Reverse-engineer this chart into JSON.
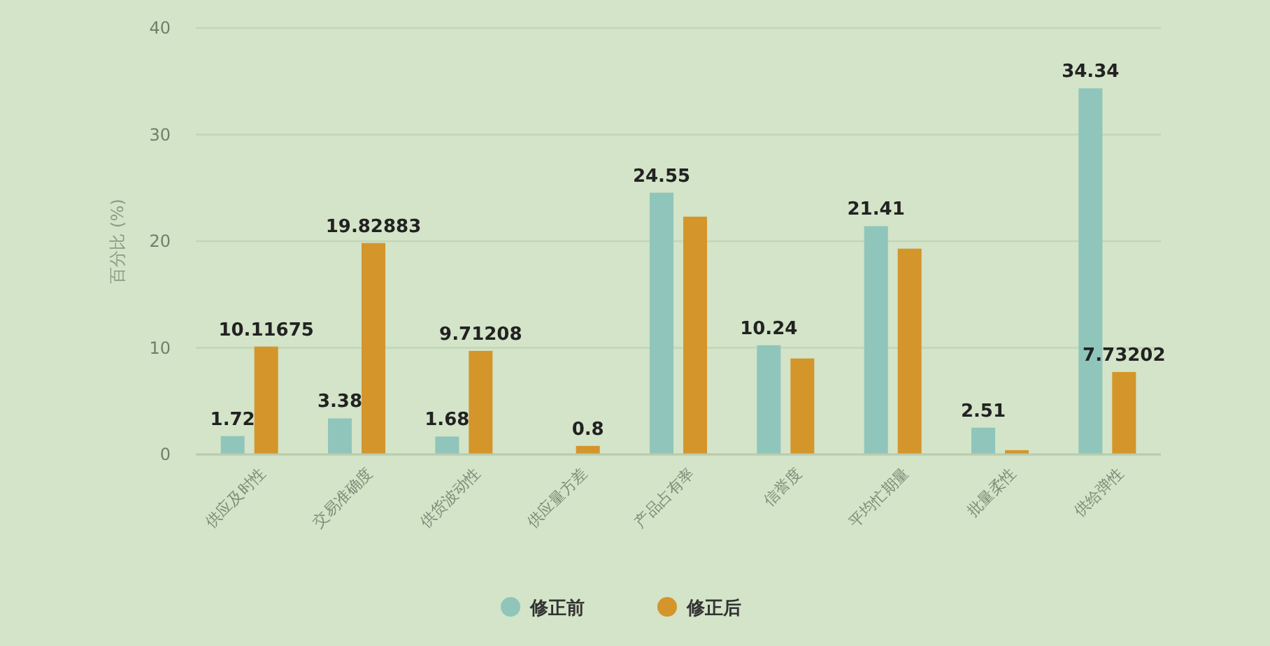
{
  "chart_data": {
    "type": "bar",
    "ylabel": "百分比 (%)",
    "categories": [
      "供应及时性",
      "交易准确度",
      "供货波动性",
      "供应量方差",
      "产品占有率",
      "信誉度",
      "平均忙期量",
      "批量柔性",
      "供给弹性"
    ],
    "series": [
      {
        "name": "修正前",
        "color": "#8fc5bb",
        "values": [
          1.72,
          3.38,
          1.68,
          null,
          24.55,
          10.24,
          21.41,
          2.51,
          34.34
        ],
        "value_labels": [
          "1.72",
          "3.38",
          "1.68",
          null,
          "24.55",
          "10.24",
          "21.41",
          "2.51",
          "34.34"
        ]
      },
      {
        "name": "修正后",
        "color": "#d4952a",
        "values": [
          10.11675,
          19.82883,
          9.71208,
          0.8,
          22.3,
          9.0,
          19.3,
          0.4,
          7.73202
        ],
        "value_labels": [
          "10.11675",
          "19.82883",
          "9.71208",
          "0.8",
          null,
          null,
          null,
          null,
          "7.73202"
        ]
      }
    ],
    "ylim": [
      0,
      40
    ],
    "yticks": [
      0,
      10,
      20,
      30,
      40
    ],
    "grid": "y",
    "legend": "bottom"
  }
}
